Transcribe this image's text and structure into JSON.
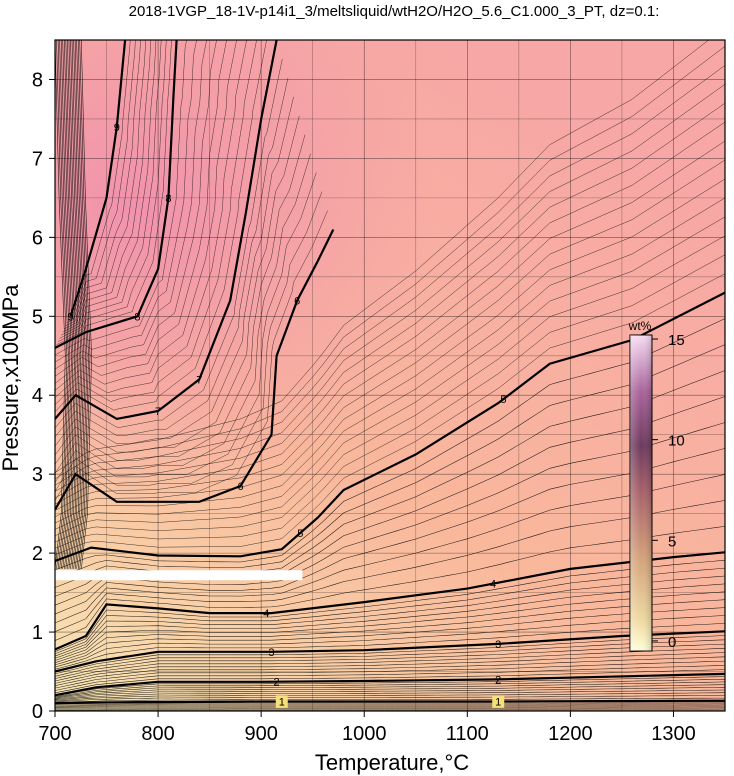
{
  "chart_data": {
    "type": "contour",
    "title": "2018-1VGP_18-1V-p14i1_3/meltsliquid/wtH2O/H2O_5.6_C1.000_3_PT, dz=0.1:",
    "xlabel": "Temperature,°C",
    "ylabel": "Pressure,x100MPa",
    "xlim": [
      700,
      1350
    ],
    "ylim": [
      0,
      8.5
    ],
    "xticks": [
      "700",
      "800",
      "900",
      "1000",
      "1100",
      "1200",
      "1300"
    ],
    "yticks": [
      "0",
      "1",
      "2",
      "3",
      "4",
      "5",
      "6",
      "7",
      "8"
    ],
    "grid": true,
    "contour_interval": 0.1,
    "major_contours": [
      {
        "level": 1,
        "label": "1",
        "points": [
          [
            700,
            0.1
          ],
          [
            760,
            0.11
          ],
          [
            900,
            0.12
          ],
          [
            1000,
            0.12
          ],
          [
            1130,
            0.12
          ],
          [
            1350,
            0.13
          ]
        ]
      },
      {
        "level": 2,
        "label": "2",
        "points": [
          [
            700,
            0.2
          ],
          [
            740,
            0.3
          ],
          [
            800,
            0.37
          ],
          [
            900,
            0.37
          ],
          [
            1000,
            0.38
          ],
          [
            1130,
            0.4
          ],
          [
            1350,
            0.47
          ]
        ]
      },
      {
        "level": 3,
        "label": "3",
        "points": [
          [
            700,
            0.5
          ],
          [
            740,
            0.63
          ],
          [
            800,
            0.75
          ],
          [
            910,
            0.75
          ],
          [
            1000,
            0.77
          ],
          [
            1130,
            0.85
          ],
          [
            1250,
            0.95
          ],
          [
            1350,
            1.01
          ]
        ]
      },
      {
        "level": 4,
        "label": "4",
        "points": [
          [
            700,
            0.78
          ],
          [
            730,
            0.95
          ],
          [
            750,
            1.35
          ],
          [
            800,
            1.3
          ],
          [
            850,
            1.24
          ],
          [
            910,
            1.24
          ],
          [
            1000,
            1.38
          ],
          [
            1100,
            1.55
          ],
          [
            1200,
            1.8
          ],
          [
            1300,
            1.95
          ],
          [
            1350,
            2.01
          ]
        ]
      },
      {
        "level": 5,
        "label": "5",
        "points": [
          [
            700,
            1.9
          ],
          [
            735,
            2.07
          ],
          [
            800,
            1.97
          ],
          [
            880,
            1.96
          ],
          [
            920,
            2.05
          ],
          [
            955,
            2.45
          ],
          [
            980,
            2.8
          ],
          [
            1050,
            3.25
          ],
          [
            1130,
            3.9
          ],
          [
            1180,
            4.4
          ],
          [
            1260,
            4.7
          ],
          [
            1350,
            5.3
          ]
        ]
      },
      {
        "level": 6,
        "label": "6",
        "points": [
          [
            700,
            2.55
          ],
          [
            720,
            3.0
          ],
          [
            760,
            2.65
          ],
          [
            800,
            2.65
          ],
          [
            840,
            2.65
          ],
          [
            880,
            2.85
          ],
          [
            910,
            3.5
          ],
          [
            915,
            4.5
          ],
          [
            935,
            5.2
          ],
          [
            955,
            5.7
          ],
          [
            970,
            6.1
          ]
        ]
      },
      {
        "level": 7,
        "label": "7",
        "points": [
          [
            700,
            3.7
          ],
          [
            720,
            4.0
          ],
          [
            760,
            3.7
          ],
          [
            800,
            3.8
          ],
          [
            840,
            4.2
          ],
          [
            870,
            5.2
          ],
          [
            885,
            6.3
          ],
          [
            900,
            7.5
          ],
          [
            915,
            8.5
          ]
        ]
      },
      {
        "level": 8,
        "label": "8",
        "points": [
          [
            700,
            4.6
          ],
          [
            730,
            4.8
          ],
          [
            780,
            5.0
          ],
          [
            800,
            5.6
          ],
          [
            810,
            6.5
          ],
          [
            815,
            7.8
          ],
          [
            818,
            8.5
          ]
        ]
      },
      {
        "level": 9,
        "label": "9",
        "points": [
          [
            715,
            5.0
          ],
          [
            730,
            5.6
          ],
          [
            750,
            6.5
          ],
          [
            760,
            7.4
          ],
          [
            768,
            8.5
          ]
        ]
      }
    ],
    "overlay_band": {
      "pressure": 1.72,
      "temperature_range": [
        700,
        940
      ],
      "color": "#ffffff"
    },
    "colorbar": {
      "label": "wt%",
      "ticks": [
        "0",
        "5",
        "10",
        "15"
      ],
      "tick_values": [
        0,
        5,
        10,
        15
      ],
      "range": [
        -0.5,
        15.2
      ],
      "colors": [
        "#fffdd8",
        "#e8c890",
        "#c98e6e",
        "#8d4a62",
        "#5a2f5a",
        "#b56fa5",
        "#f6dbf2"
      ]
    },
    "colors": {
      "field_low": "#f4e4b4",
      "field_mid": "#f9b59a",
      "field_high": "#f19aaa",
      "line": "#000000"
    }
  }
}
